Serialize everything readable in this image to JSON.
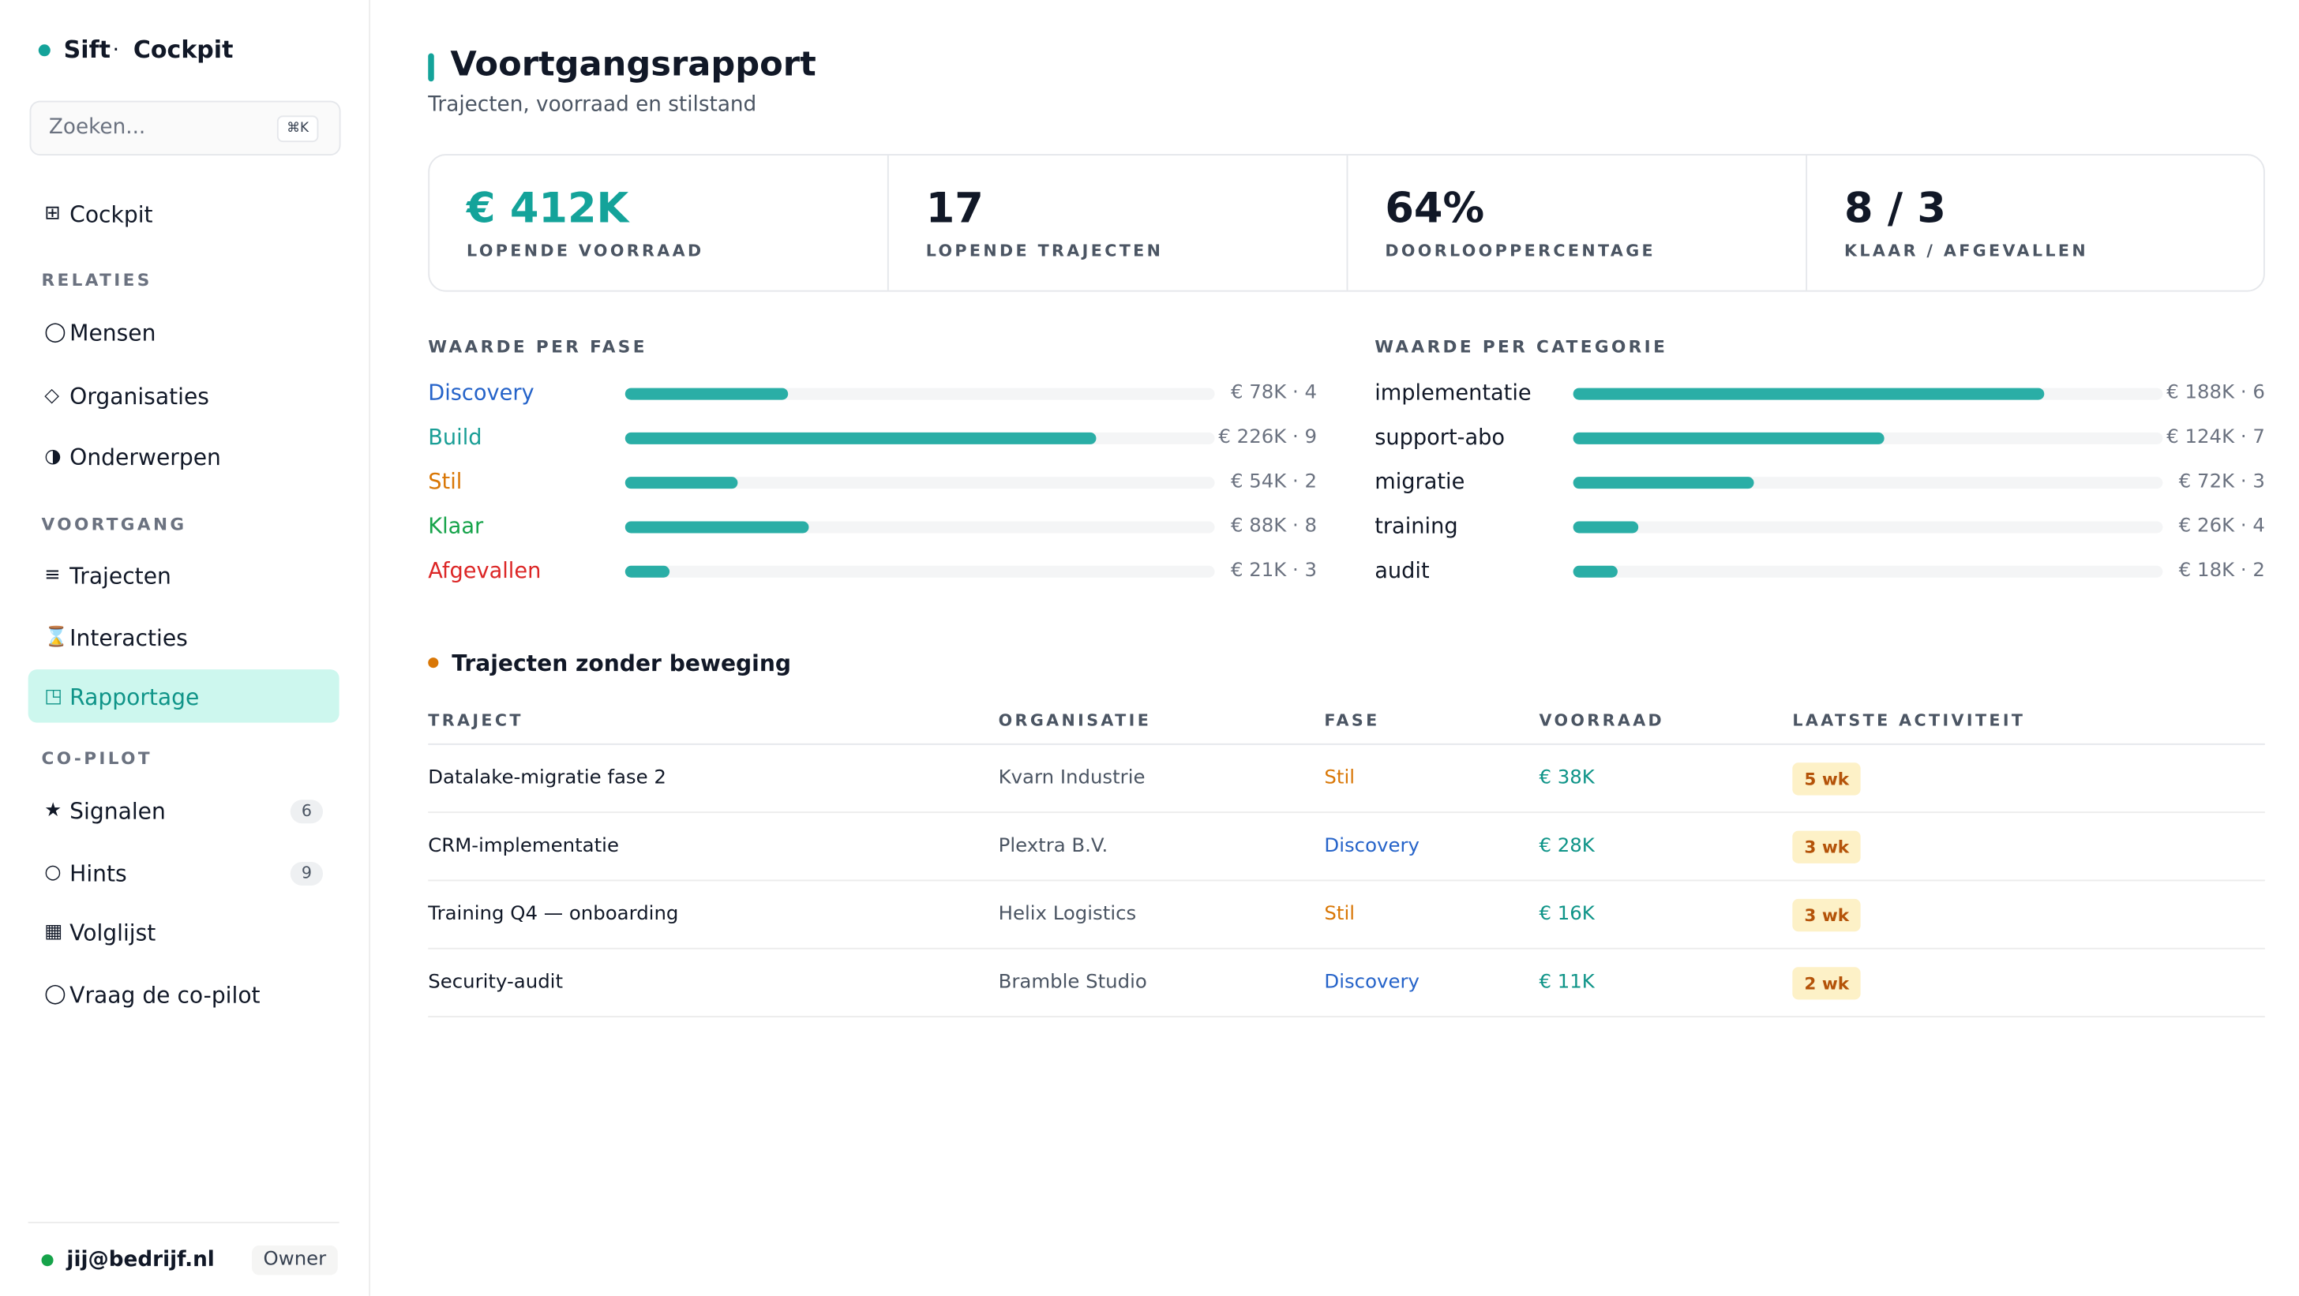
{
  "sidebar": {
    "brand": "Sift",
    "separator": "·",
    "product": "Cockpit",
    "search_placeholder": "Zoeken...",
    "search_shortcut": "⌘K",
    "nav": [
      {
        "icon": "⊞",
        "label": "Cockpit"
      },
      {
        "section": "RELATIES"
      },
      {
        "icon": "◯",
        "label": "Mensen"
      },
      {
        "icon": "◇",
        "label": "Organisaties"
      },
      {
        "icon": "◑",
        "label": "Onderwerpen"
      },
      {
        "section": "VOORTGANG"
      },
      {
        "icon": "≡",
        "label": "Trajecten"
      },
      {
        "icon": "⌛",
        "label": "Interacties"
      },
      {
        "icon": "◳",
        "label": "Rapportage",
        "active": true
      },
      {
        "section": "CO-PILOT"
      },
      {
        "icon": "★",
        "label": "Signalen",
        "badge": "6"
      },
      {
        "icon": "○",
        "label": "Hints",
        "badge": "9"
      },
      {
        "icon": "▦",
        "label": "Volglijst"
      },
      {
        "icon": "◯",
        "label": "Vraag de co-pilot"
      }
    ],
    "user": "jij@bedrijf.nl",
    "role": "Owner"
  },
  "header": {
    "title": "Voortgangsrapport",
    "subtitle": "Trajecten, voorraad en stilstand"
  },
  "kpis": [
    {
      "value": "€ 412K",
      "label": "LOPENDE VOORRAAD",
      "accent": true
    },
    {
      "value": "17",
      "label": "LOPENDE TRAJECTEN"
    },
    {
      "value": "64%",
      "label": "DOORLOOPPERCENTAGE"
    },
    {
      "value": "8 / 3",
      "label": "KLAAR / AFGEVALLEN"
    }
  ],
  "charts": [
    {
      "title": "WAARDE PER FASE",
      "bar_color": "#2aaea6",
      "categories": [
        "Discovery",
        "Build",
        "Stil",
        "Klaar",
        "Afgevallen"
      ],
      "colors": [
        "#2563c9",
        "#1a9e96",
        "#d97706",
        "#16a34a",
        "#dc2626"
      ],
      "values": [
        78,
        226,
        54,
        88,
        21
      ],
      "value_labels": [
        "€ 78K · 4",
        "€ 226K · 9",
        "€ 54K · 2",
        "€ 88K · 8",
        "€ 21K · 3"
      ]
    },
    {
      "title": "WAARDE PER CATEGORIE",
      "bar_color": "#2aaea6",
      "categories": [
        "implementatie",
        "support-abo",
        "migratie",
        "training",
        "audit"
      ],
      "colors": [
        "#111827",
        "#111827",
        "#111827",
        "#111827",
        "#111827"
      ],
      "values": [
        188,
        124,
        72,
        26,
        18
      ],
      "value_labels": [
        "€ 188K · 6",
        "€ 124K · 7",
        "€ 72K · 3",
        "€ 26K · 4",
        "€ 18K · 2"
      ]
    }
  ],
  "table": {
    "title": "Trajecten zonder beweging",
    "headers": [
      "TRAJECT",
      "ORGANISATIE",
      "FASE",
      "VOORRAAD",
      "LAATSTE ACTIVITEIT"
    ],
    "rows": [
      [
        "Datalake-migratie fase 2",
        "Kvarn Industrie",
        "Stil",
        "€ 38K",
        "5 wk"
      ],
      [
        "CRM-implementatie",
        "Plextra B.V.",
        "Discovery",
        "€ 28K",
        "3 wk"
      ],
      [
        "Training Q4 — onboarding",
        "Helix Logistics",
        "Stil",
        "€ 16K",
        "3 wk"
      ],
      [
        "Security-audit",
        "Bramble Studio",
        "Discovery",
        "€ 11K",
        "2 wk"
      ]
    ]
  }
}
